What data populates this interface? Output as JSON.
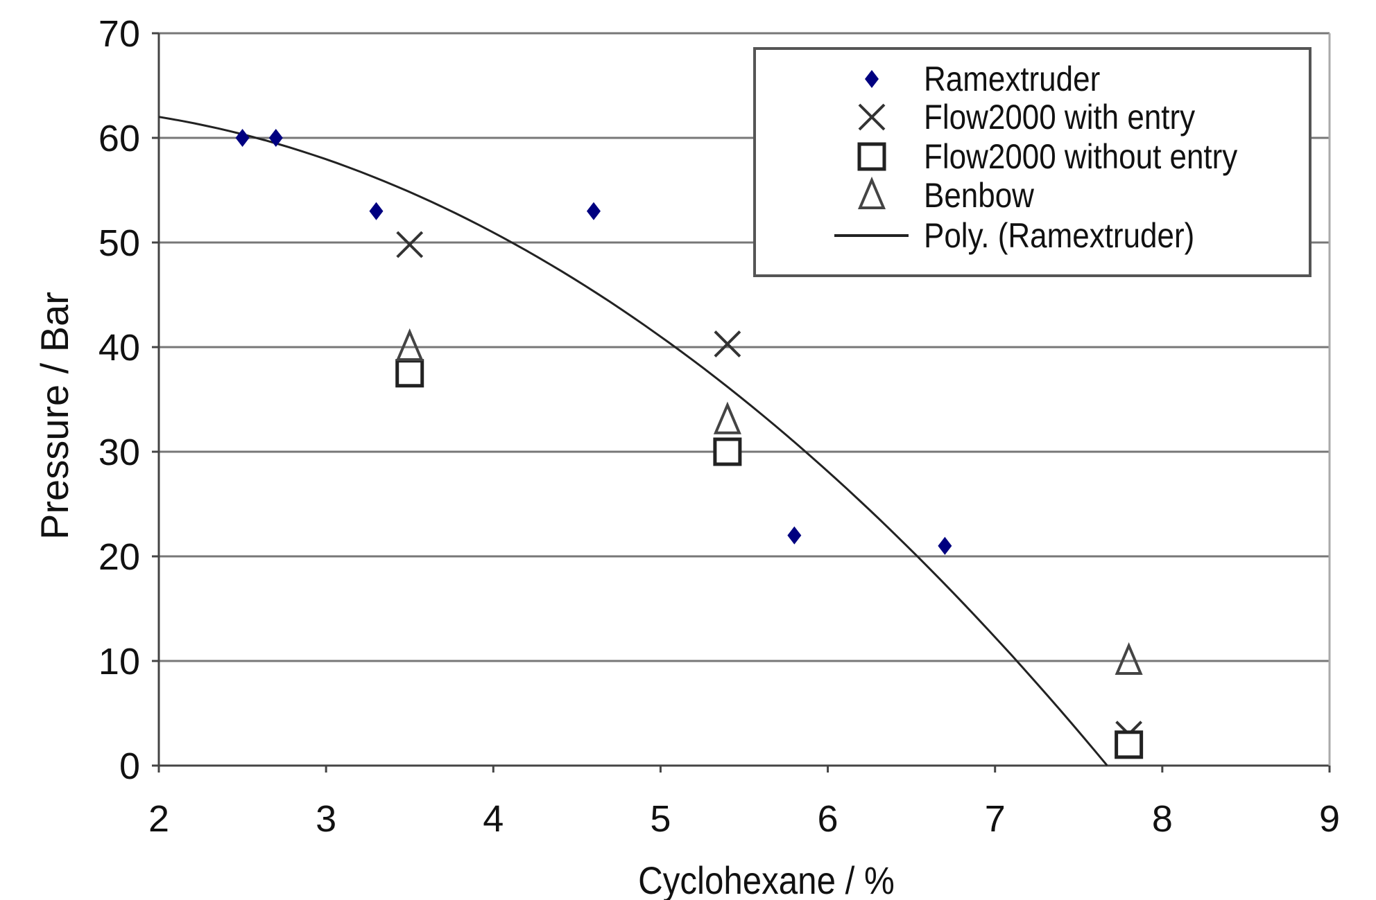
{
  "chart_data": {
    "type": "scatter",
    "title": "",
    "xlabel": "Cyclohexane / %",
    "ylabel": "Pressure / Bar",
    "xlim": [
      2,
      9
    ],
    "ylim": [
      0,
      70
    ],
    "xticks": [
      2,
      3,
      4,
      5,
      6,
      7,
      8,
      9
    ],
    "yticks": [
      0,
      10,
      20,
      30,
      40,
      50,
      60,
      70
    ],
    "grid": "horizontal",
    "legend_position": "top-right",
    "series": [
      {
        "name": "Ramextruder",
        "marker": "diamond",
        "color": "#000080",
        "points": [
          [
            2.5,
            60
          ],
          [
            2.7,
            60
          ],
          [
            3.3,
            53
          ],
          [
            4.6,
            53
          ],
          [
            5.8,
            22
          ],
          [
            6.7,
            21
          ]
        ]
      },
      {
        "name": "Flow2000 with entry",
        "marker": "x",
        "color": "#333333",
        "points": [
          [
            3.5,
            49.8
          ],
          [
            5.4,
            40.3
          ],
          [
            7.8,
            3
          ]
        ]
      },
      {
        "name": "Flow2000 without entry",
        "marker": "square",
        "color": "#222222",
        "points": [
          [
            3.5,
            37.5
          ],
          [
            5.4,
            30
          ],
          [
            7.8,
            2
          ]
        ]
      },
      {
        "name": "Benbow",
        "marker": "triangle",
        "color": "#444444",
        "points": [
          [
            3.5,
            40
          ],
          [
            5.4,
            33
          ],
          [
            7.8,
            10
          ]
        ]
      },
      {
        "name": "Poly. (Ramextruder)",
        "marker": "line",
        "color": "#222222",
        "polynomial": {
          "coefficients": [
            61.26,
            3.32,
            -1.474
          ],
          "x_range": [
            2,
            7.67
          ]
        }
      }
    ]
  }
}
